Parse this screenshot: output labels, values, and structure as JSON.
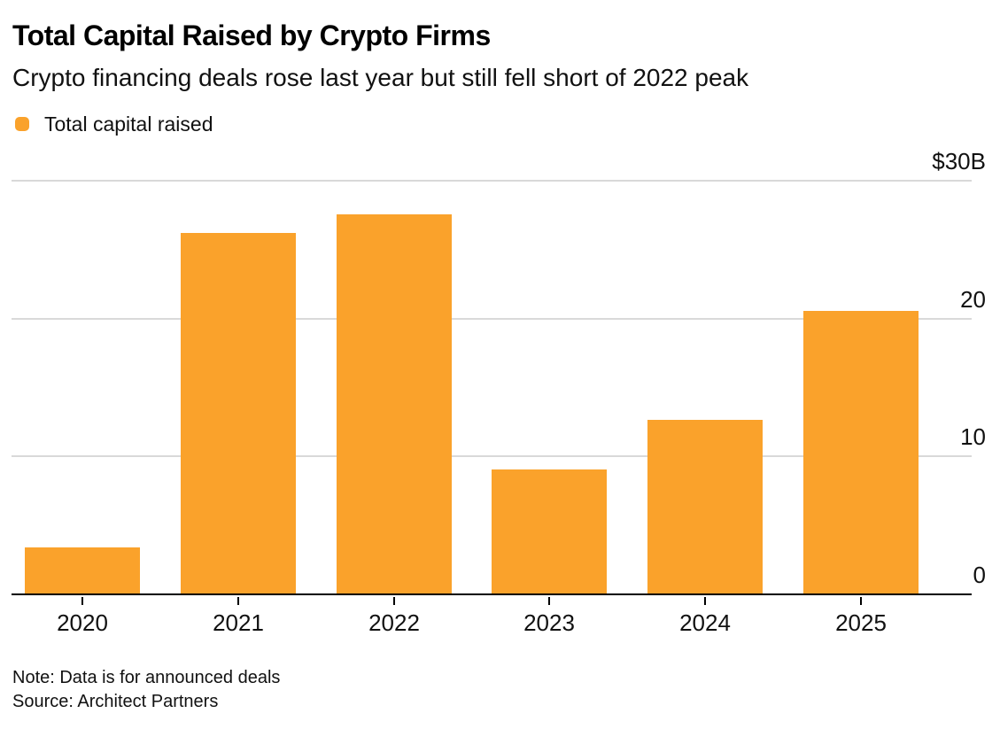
{
  "header": {
    "title": "Total Capital Raised by Crypto Firms",
    "subtitle": "Crypto financing deals rose last year but still fell short of 2022 peak"
  },
  "legend": {
    "items": [
      {
        "label": "Total capital raised",
        "color": "#FAA22B"
      }
    ]
  },
  "footer": {
    "note": "Note: Data is for announced deals",
    "source": "Source: Architect Partners"
  },
  "colors": {
    "bar": "#FAA22B",
    "gridline": "#D9D9D9",
    "axis_line": "#000000",
    "background": "#FFFFFF",
    "text": "#000000"
  },
  "chart_data": {
    "type": "bar",
    "title": "Total Capital Raised by Crypto Firms",
    "subtitle": "Crypto financing deals rose last year but still fell short of 2022 peak",
    "unit": "billions of US dollars",
    "categories": [
      "2020",
      "2021",
      "2022",
      "2023",
      "2024",
      "2025"
    ],
    "series": [
      {
        "name": "Total capital raised",
        "values": [
          3.5,
          26.3,
          27.6,
          9.1,
          12.7,
          20.6
        ]
      }
    ],
    "ylim": [
      0,
      30
    ],
    "yticks": [
      {
        "value": 0,
        "label": "0"
      },
      {
        "value": 10,
        "label": "10"
      },
      {
        "value": 20,
        "label": "20"
      },
      {
        "value": 30,
        "label": "$30B"
      }
    ],
    "grid": "horizontal",
    "grid_label_position": "right, above gridline",
    "legend_position": "top-left",
    "bar_color": "#FAA22B",
    "note": "Note: Data is for announced deals",
    "source": "Source: Architect Partners"
  }
}
